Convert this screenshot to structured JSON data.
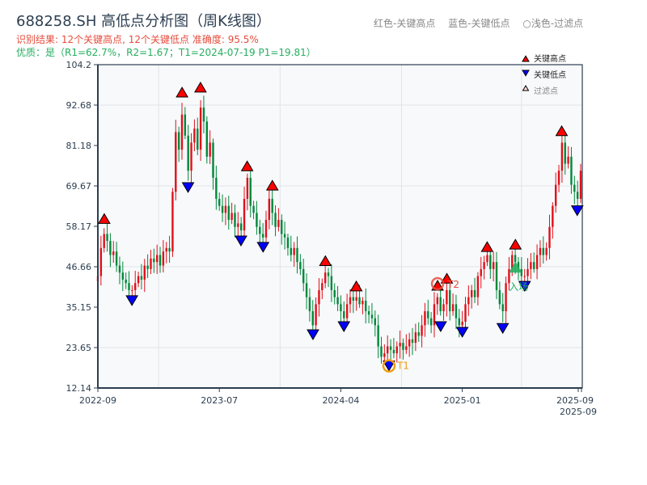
{
  "header": {
    "title": "688258.SH 高低点分析图（周K线图）",
    "result_line": "识别结果: 12个关键高点, 12个关键低点   准确度: 95.5%",
    "quality_line": "优质：是（R1=62.7%，R2=1.67；T1=2024-07-19 P1=19.81）",
    "legend_top": [
      "红色-关键高点",
      "蓝色-关键低点",
      "○浅色-过滤点"
    ]
  },
  "chart_data": {
    "type": "candlestick",
    "title": "688258.SH 高低点分析图（周K线图）",
    "ylim": [
      12.14,
      104.2
    ],
    "y_ticks": [
      "12.14",
      "23.65",
      "35.15",
      "46.66",
      "58.17",
      "69.67",
      "81.18",
      "92.68",
      "104.2"
    ],
    "x_ticks": [
      {
        "label": "2022-09",
        "date": "2022-09-01"
      },
      {
        "label": "2023-07",
        "date": "2023-07-01"
      },
      {
        "label": "2024-04",
        "date": "2024-04-01"
      },
      {
        "label": "2025-01",
        "date": "2025-01-01"
      },
      {
        "label": "2025-09",
        "date": "2025-09-01"
      },
      {
        "label": "2025-09",
        "date": "2025-09-05"
      }
    ],
    "grid": true,
    "up_color": "#e0101a",
    "down_color": "#00883a",
    "closes": [
      44,
      52,
      56,
      54,
      50,
      51,
      47,
      45,
      43,
      42,
      40,
      40,
      42,
      44,
      43,
      47,
      46,
      49,
      48,
      50,
      47,
      51,
      52,
      51,
      68,
      85,
      80,
      90,
      84,
      74,
      82,
      86,
      80,
      92,
      88,
      78,
      82,
      72,
      66,
      64,
      62,
      64,
      60,
      62,
      58,
      59,
      57,
      66,
      72,
      64,
      62,
      58,
      56,
      55,
      60,
      66,
      62,
      58,
      60,
      56,
      55,
      52,
      50,
      52,
      48,
      46,
      42,
      38,
      34,
      30,
      36,
      40,
      42,
      45,
      44,
      40,
      38,
      36,
      34,
      32,
      36,
      38,
      37,
      38,
      36,
      37,
      34,
      33,
      32,
      30,
      24,
      21,
      22,
      24,
      23,
      22,
      24,
      25,
      23,
      24,
      26,
      25,
      28,
      27,
      30,
      34,
      32,
      30,
      36,
      38,
      34,
      36,
      40,
      34,
      36,
      32,
      30,
      31,
      36,
      38,
      40,
      38,
      44,
      46,
      48,
      50,
      46,
      48,
      40,
      36,
      34,
      42,
      46,
      50,
      48,
      46,
      44,
      44,
      46,
      48,
      46,
      50,
      52,
      50,
      52,
      58,
      64,
      70,
      74,
      82,
      76,
      78,
      70,
      68,
      66,
      74
    ],
    "key_highs": [
      {
        "date": "2022-09-17",
        "price": 59
      },
      {
        "date": "2023-03-30",
        "price": 95
      },
      {
        "date": "2023-05-15",
        "price": 96.4
      },
      {
        "date": "2023-09-02",
        "price": 74
      },
      {
        "date": "2023-10-29",
        "price": 68.5
      },
      {
        "date": "2024-02-26",
        "price": 47
      },
      {
        "date": "2024-05-06",
        "price": 39.8
      },
      {
        "date": "2024-11-06",
        "price": 40
      },
      {
        "date": "2024-11-27",
        "price": 42
      },
      {
        "date": "2025-02-21",
        "price": 51
      },
      {
        "date": "2025-04-20",
        "price": 51.7
      },
      {
        "date": "2025-07-24",
        "price": 84
      }
    ],
    "key_lows": [
      {
        "date": "2022-11-25",
        "price": 38.4
      },
      {
        "date": "2023-04-14",
        "price": 70.6
      },
      {
        "date": "2023-08-19",
        "price": 55.4
      },
      {
        "date": "2023-10-08",
        "price": 53.6
      },
      {
        "date": "2024-01-29",
        "price": 28.7
      },
      {
        "date": "2024-04-08",
        "price": 31
      },
      {
        "date": "2024-07-19",
        "price": 19.81
      },
      {
        "date": "2024-11-13",
        "price": 31
      },
      {
        "date": "2025-01-01",
        "price": 29.4
      },
      {
        "date": "2025-03-25",
        "price": 30.5
      },
      {
        "date": "2025-05-09",
        "price": 42.5
      },
      {
        "date": "2025-08-25",
        "price": 64
      }
    ],
    "annotations": [
      {
        "label": "T1",
        "date": "2024-07-19",
        "price": 19.81,
        "color": "#f39c12"
      },
      {
        "label": "T2",
        "date": "2024-11-06",
        "price": 40,
        "color": "#e74c3c"
      },
      {
        "label": "入场",
        "date": "2025-04-20",
        "price": 45,
        "color": "#27ae60"
      }
    ],
    "legend": {
      "placement": "top-right",
      "entries": [
        "关键高点",
        "关键低点",
        "过滤点"
      ]
    },
    "high_color": "#ff0000",
    "low_color": "#0000ff"
  }
}
